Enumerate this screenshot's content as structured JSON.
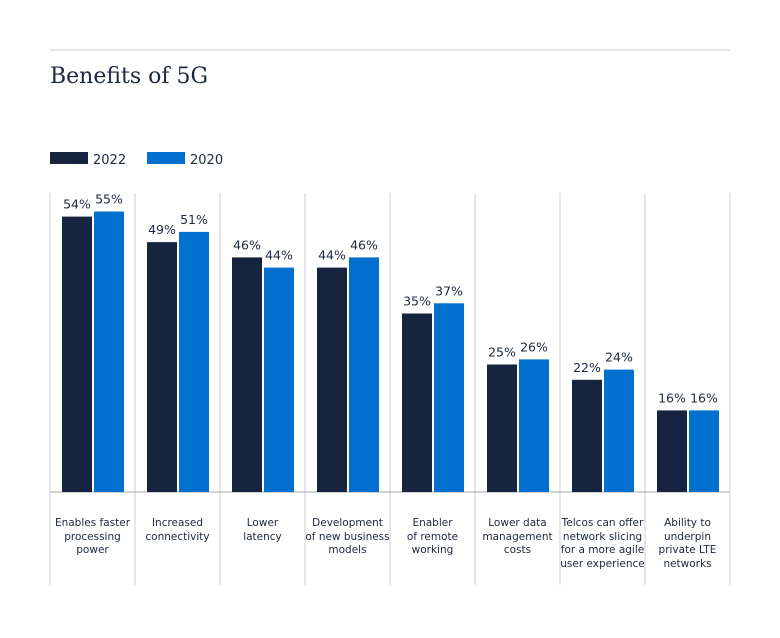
{
  "chart_data": {
    "type": "bar",
    "title": "Benefits of 5G",
    "categories": [
      "Enables faster\nprocessing\npower",
      "Increased\nconnectivity",
      "Lower\nlatency",
      "Development\nof new business\nmodels",
      "Enabler\nof remote\nworking",
      "Lower data\nmanagement\ncosts",
      "Telcos can offer\nnetwork slicing\nfor a more agile\nuser experience",
      "Ability to\nunderpin\nprivate LTE\nnetworks"
    ],
    "series": [
      {
        "name": "2022",
        "color": "#17243f",
        "values": [
          54,
          49,
          46,
          44,
          35,
          25,
          22,
          16
        ],
        "value_labels": [
          "54%",
          "49%",
          "46%",
          "44%",
          "35%",
          "25%",
          "22%",
          "16%"
        ]
      },
      {
        "name": "2020",
        "color": "#0170cf",
        "values": [
          55,
          51,
          44,
          46,
          37,
          26,
          24,
          16
        ],
        "value_labels": [
          "55%",
          "51%",
          "44%",
          "46%",
          "37%",
          "26%",
          "24%",
          "16%"
        ]
      }
    ],
    "legend": "top-left"
  }
}
